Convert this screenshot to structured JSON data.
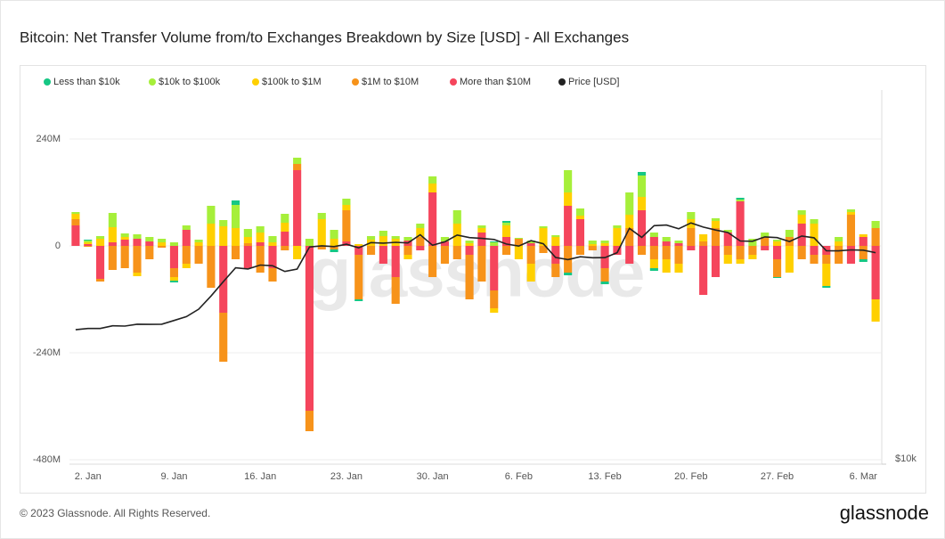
{
  "chart_data": {
    "type": "bar",
    "title": "Bitcoin: Net Transfer Volume from/to Exchanges Breakdown by Size [USD] - All Exchanges",
    "watermark": "glassnode",
    "footer": "© 2023 Glassnode. All Rights Reserved.",
    "logo": "glassnode",
    "categories": [
      null,
      "2. Jan",
      null,
      null,
      null,
      null,
      null,
      null,
      "9. Jan",
      null,
      null,
      null,
      null,
      null,
      null,
      "16. Jan",
      null,
      null,
      null,
      null,
      null,
      null,
      "23. Jan",
      null,
      null,
      null,
      null,
      null,
      null,
      "30. Jan",
      null,
      null,
      null,
      null,
      null,
      null,
      "6. Feb",
      null,
      null,
      null,
      null,
      null,
      null,
      "13. Feb",
      null,
      null,
      null,
      null,
      null,
      null,
      "20. Feb",
      null,
      null,
      null,
      null,
      null,
      null,
      "27. Feb",
      null,
      null,
      null,
      null,
      null,
      null,
      "6. Mar",
      null
    ],
    "ylim": [
      -490,
      350
    ],
    "yticks": [
      {
        "value": 240,
        "label": "240M"
      },
      0,
      {
        "value": -240,
        "label": "-240M"
      },
      {
        "value": -480,
        "label": "-480M"
      }
    ],
    "y2lim": [
      10000,
      41000
    ],
    "y2scale": "log",
    "y2ticks": [
      {
        "value": 10000,
        "label": "$10k"
      }
    ],
    "grid": true,
    "legend": "top-left",
    "series": [
      {
        "name": "Less than $10k",
        "color": "#16c784",
        "values": [
          0,
          2,
          0,
          0,
          0,
          0,
          0,
          0,
          -4,
          0,
          0,
          0,
          0,
          10,
          0,
          0,
          0,
          0,
          0,
          0,
          0,
          -6,
          0,
          -4,
          0,
          0,
          0,
          0,
          0,
          0,
          0,
          0,
          0,
          0,
          2,
          4,
          0,
          0,
          0,
          0,
          -6,
          0,
          0,
          -6,
          0,
          0,
          8,
          -6,
          0,
          0,
          0,
          0,
          0,
          0,
          4,
          0,
          0,
          -2,
          0,
          0,
          0,
          -4,
          0,
          0,
          -6,
          0
        ]
      },
      {
        "name": "$10k to $100k",
        "color": "#a6ef3a",
        "values": [
          4,
          4,
          6,
          32,
          8,
          10,
          10,
          8,
          8,
          10,
          6,
          40,
          14,
          52,
          18,
          14,
          14,
          20,
          14,
          16,
          14,
          20,
          14,
          0,
          8,
          12,
          6,
          8,
          10,
          16,
          10,
          30,
          6,
          6,
          8,
          6,
          2,
          6,
          4,
          4,
          50,
          16,
          8,
          6,
          6,
          50,
          48,
          10,
          10,
          6,
          16,
          0,
          6,
          6,
          4,
          16,
          10,
          4,
          16,
          10,
          10,
          0,
          10,
          6,
          0,
          16
        ]
      },
      {
        "name": "$100k to $1M",
        "color": "#ffd000",
        "values": [
          12,
          4,
          16,
          34,
          6,
          -8,
          0,
          8,
          -8,
          -10,
          8,
          50,
          44,
          40,
          14,
          22,
          8,
          20,
          -30,
          0,
          60,
          16,
          12,
          4,
          14,
          22,
          16,
          -10,
          20,
          20,
          0,
          50,
          6,
          10,
          -10,
          26,
          -30,
          -40,
          40,
          20,
          30,
          8,
          4,
          6,
          40,
          30,
          30,
          -20,
          -30,
          -20,
          20,
          16,
          16,
          -20,
          -10,
          -10,
          0,
          10,
          -60,
          20,
          50,
          -50,
          10,
          6,
          6,
          -50
        ]
      },
      {
        "name": "$1M to $10M",
        "color": "#f7931a",
        "values": [
          14,
          -2,
          -6,
          -54,
          -50,
          -60,
          -30,
          -4,
          -20,
          -40,
          -40,
          -94,
          -110,
          -30,
          6,
          -60,
          -30,
          -10,
          14,
          -46,
          -8,
          -8,
          70,
          -100,
          -20,
          0,
          -60,
          -20,
          20,
          -70,
          -40,
          -30,
          -100,
          -80,
          -40,
          -20,
          16,
          -40,
          -16,
          -30,
          -60,
          -20,
          -10,
          -30,
          0,
          40,
          -20,
          -30,
          -30,
          -40,
          40,
          10,
          40,
          -20,
          -30,
          -20,
          20,
          -40,
          20,
          -30,
          -20,
          -20,
          -40,
          70,
          -30,
          40
        ]
      },
      {
        "name": "More than $10M",
        "color": "#f5455c",
        "values": [
          46,
          4,
          -74,
          8,
          14,
          16,
          10,
          0,
          -50,
          36,
          0,
          0,
          -150,
          0,
          -50,
          8,
          -50,
          32,
          170,
          -370,
          0,
          0,
          10,
          -20,
          0,
          -40,
          -70,
          12,
          -10,
          120,
          10,
          0,
          -20,
          30,
          -100,
          20,
          0,
          6,
          0,
          -40,
          90,
          60,
          0,
          -50,
          -20,
          -40,
          80,
          20,
          10,
          6,
          -10,
          -110,
          -70,
          30,
          100,
          0,
          -10,
          -30,
          0,
          50,
          -20,
          -20,
          0,
          -40,
          20,
          -120
        ]
      },
      {
        "name": "Price [USD]",
        "color": "#222222",
        "axis": "y2",
        "type": "line",
        "values": [
          16600,
          16680,
          16680,
          16850,
          16830,
          16950,
          16940,
          16950,
          17190,
          17440,
          17940,
          18850,
          19900,
          20970,
          20880,
          21190,
          21130,
          20680,
          20870,
          22680,
          22780,
          22710,
          22920,
          22610,
          23060,
          23010,
          23080,
          23030,
          23750,
          22830,
          23130,
          23730,
          23500,
          23430,
          23330,
          22940,
          22760,
          23230,
          22960,
          21800,
          21630,
          21860,
          21780,
          21790,
          22200,
          24330,
          23520,
          24580,
          24640,
          24290,
          24840,
          24450,
          24180,
          23950,
          23200,
          23180,
          23560,
          23500,
          23150,
          23640,
          23480,
          22360,
          22350,
          22430,
          22410,
          22200
        ]
      }
    ]
  }
}
